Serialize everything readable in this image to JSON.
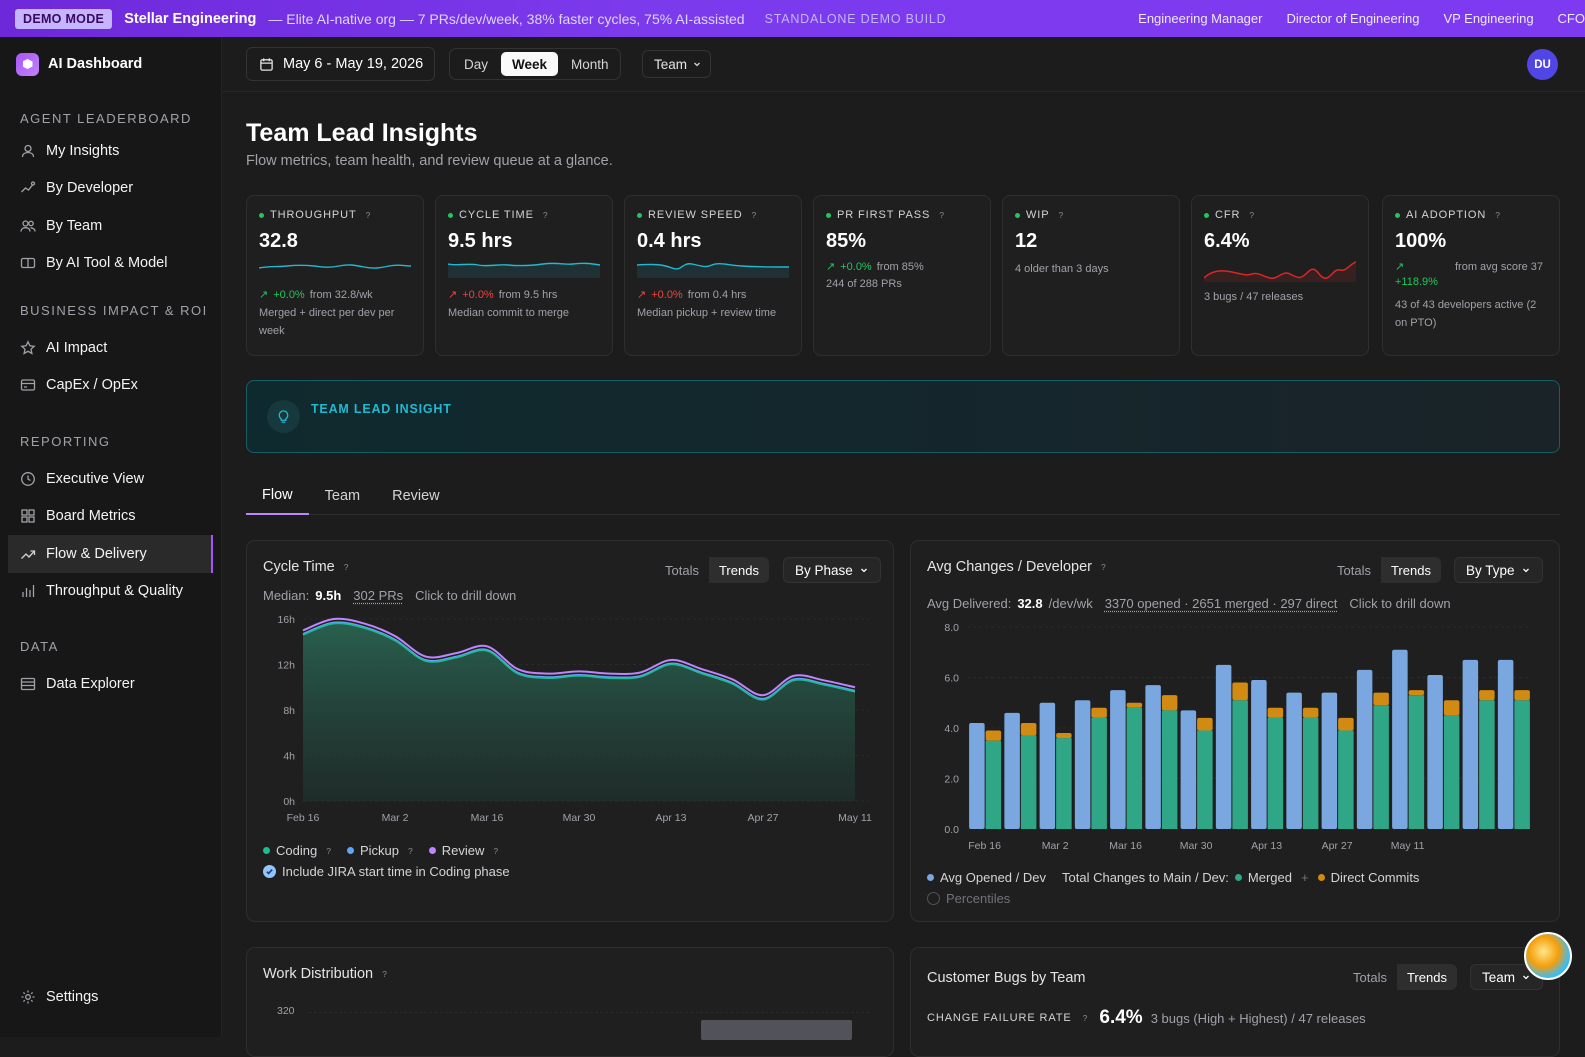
{
  "banner": {
    "badge": "DEMO MODE",
    "org": "Stellar Engineering",
    "tagline": "— Elite AI-native org — 7 PRs/dev/week, 38% faster cycles, 75% AI-assisted",
    "build": "STANDALONE DEMO BUILD",
    "roles": [
      "Engineering Manager",
      "Director of Engineering",
      "VP Engineering",
      "CFO"
    ]
  },
  "sidebar": {
    "brand": "AI Dashboard",
    "sections": [
      {
        "title": "AGENT LEADERBOARD",
        "items": [
          {
            "label": "My Insights",
            "icon": "user-icon"
          },
          {
            "label": "By Developer",
            "icon": "trend-user-icon"
          },
          {
            "label": "By Team",
            "icon": "users-icon"
          },
          {
            "label": "By AI Tool & Model",
            "icon": "toggle-icon"
          }
        ]
      },
      {
        "title": "BUSINESS IMPACT & ROI",
        "items": [
          {
            "label": "AI Impact",
            "icon": "star-icon"
          },
          {
            "label": "CapEx / OpEx",
            "icon": "ledger-icon"
          }
        ]
      },
      {
        "title": "REPORTING",
        "items": [
          {
            "label": "Executive View",
            "icon": "clock-icon"
          },
          {
            "label": "Board Metrics",
            "icon": "grid-icon"
          },
          {
            "label": "Flow & Delivery",
            "icon": "trend-icon",
            "active": true
          },
          {
            "label": "Throughput & Quality",
            "icon": "bar-icon"
          }
        ]
      },
      {
        "title": "DATA",
        "items": [
          {
            "label": "Data Explorer",
            "icon": "table-icon"
          }
        ]
      }
    ],
    "settings": "Settings"
  },
  "topbar": {
    "date_range": "May 6 - May 19, 2026",
    "granularity": [
      "Day",
      "Week",
      "Month"
    ],
    "granularity_selected": "Week",
    "scope": "Team",
    "avatar": "DU"
  },
  "page": {
    "title": "Team Lead Insights",
    "subtitle": "Flow metrics, team health, and review queue at a glance."
  },
  "kpis": [
    {
      "label": "THROUGHPUT",
      "value": "32.8",
      "delta": "+0.0%",
      "delta_from": "from 32.8/wk",
      "desc": "Merged + direct per dev per week",
      "spark_color": "#22b8cf"
    },
    {
      "label": "CYCLE TIME",
      "value": "9.5 hrs",
      "delta": "+0.0%",
      "delta_from": "from 9.5 hrs",
      "desc": "Median commit to merge",
      "spark_color": "#22b8cf"
    },
    {
      "label": "REVIEW SPEED",
      "value": "0.4 hrs",
      "delta": "+0.0%",
      "delta_from": "from 0.4 hrs",
      "desc": "Median pickup + review time",
      "spark_color": "#22b8cf"
    },
    {
      "label": "PR FIRST PASS",
      "value": "85%",
      "delta": "+0.0%",
      "delta_from": "from 85%",
      "desc": "244 of 288 PRs"
    },
    {
      "label": "WIP",
      "value": "12",
      "desc": "4 older than 3 days"
    },
    {
      "label": "CFR",
      "value": "6.4%",
      "desc": "3 bugs / 47 releases",
      "spark_color": "#dc2626"
    },
    {
      "label": "AI ADOPTION",
      "value": "100%",
      "delta": "+118.9%",
      "delta_from": "from avg score 37",
      "desc": "43 of 43 developers active (2 on PTO)"
    }
  ],
  "insight": {
    "title": "TEAM LEAD INSIGHT"
  },
  "tabs": [
    "Flow",
    "Team",
    "Review"
  ],
  "tabs_selected": "Flow",
  "cycle_card": {
    "title": "Cycle Time",
    "toggle": [
      "Totals",
      "Trends"
    ],
    "toggle_selected": "Trends",
    "dropdown": "By Phase",
    "median_label": "Median:",
    "median_value": "9.5h",
    "prs": "302 PRs",
    "drill": "Click to drill down",
    "legend": [
      {
        "name": "Coding",
        "color": "#22b893"
      },
      {
        "name": "Pickup",
        "color": "#60a5fa"
      },
      {
        "name": "Review",
        "color": "#c084fc"
      }
    ],
    "checkbox_label": "Include JIRA start time in Coding phase",
    "checkbox_checked": true
  },
  "avg_card": {
    "title": "Avg Changes / Developer",
    "toggle": [
      "Totals",
      "Trends"
    ],
    "toggle_selected": "Trends",
    "dropdown": "By Type",
    "delivered_label": "Avg Delivered:",
    "delivered_value": "32.8",
    "delivered_unit": "/dev/wk",
    "counts": "3370 opened · 2651 merged · 297 direct",
    "drill": "Click to drill down",
    "legend_opened": "Avg Opened / Dev",
    "legend_total": "Total Changes to Main / Dev:",
    "legend_merged": "Merged",
    "legend_plus": "+",
    "legend_direct": "Direct Commits",
    "percentiles": "Percentiles"
  },
  "work_card": {
    "title": "Work Distribution",
    "y_top": "320"
  },
  "bugs_card": {
    "title": "Customer Bugs by Team",
    "toggle": [
      "Totals",
      "Trends"
    ],
    "toggle_selected": "Trends",
    "dropdown": "Team",
    "cfr_label": "CHANGE FAILURE RATE",
    "cfr_value": "6.4%",
    "cfr_detail": "3 bugs (High + Highest) / 47 releases"
  },
  "colors": {
    "accent": "#a855f7",
    "coding": "#22b893",
    "pickup": "#60a5fa",
    "review": "#c084fc",
    "opened": "#7aa7e0",
    "merged": "#2fa787",
    "direct": "#d18a12"
  },
  "chart_data": [
    {
      "type": "area",
      "title": "Cycle Time",
      "x_labels": [
        "Feb 16",
        "Mar 2",
        "Mar 16",
        "Mar 30",
        "Apr 13",
        "Apr 27",
        "May 11"
      ],
      "y_ticks": [
        "0h",
        "4h",
        "8h",
        "12h",
        "16h"
      ],
      "ylim": [
        0,
        16
      ],
      "series": [
        {
          "name": "Coding",
          "values": [
            14.6,
            15.6,
            15.2,
            14.1,
            12.3,
            12.6,
            13.2,
            11.2,
            10.8,
            11.0,
            10.8,
            10.9,
            12.0,
            11.2,
            10.3,
            8.9,
            10.6,
            10.2,
            9.6
          ]
        },
        {
          "name": "Pickup",
          "values": [
            0.1,
            0.1,
            0.1,
            0.1,
            0.1,
            0.1,
            0.1,
            0.1,
            0.1,
            0.1,
            0.1,
            0.1,
            0.1,
            0.1,
            0.1,
            0.1,
            0.1,
            0.1,
            0.1
          ]
        },
        {
          "name": "Review",
          "values": [
            0.3,
            0.3,
            0.3,
            0.3,
            0.3,
            0.3,
            0.3,
            0.3,
            0.3,
            0.3,
            0.3,
            0.3,
            0.3,
            0.3,
            0.3,
            0.3,
            0.3,
            0.3,
            0.3
          ]
        }
      ]
    },
    {
      "type": "bar",
      "title": "Avg Changes / Developer",
      "x_labels": [
        "Feb 16",
        "Mar 2",
        "Mar 16",
        "Mar 30",
        "Apr 13",
        "Apr 27",
        "May 11"
      ],
      "y_ticks": [
        "0.0",
        "2.0",
        "4.0",
        "6.0",
        "8.0"
      ],
      "ylim": [
        0,
        8
      ],
      "series": [
        {
          "name": "Avg Opened / Dev",
          "values": [
            4.2,
            4.6,
            5.0,
            5.1,
            5.5,
            5.7,
            4.7,
            6.5,
            5.9,
            5.4,
            5.4,
            6.3,
            7.1,
            6.1,
            6.7,
            6.7
          ]
        },
        {
          "name": "Merged",
          "values": [
            3.5,
            3.7,
            3.6,
            4.4,
            4.8,
            4.7,
            3.9,
            5.1,
            4.4,
            4.4,
            3.9,
            4.9,
            5.3,
            4.5,
            5.1,
            5.1
          ]
        },
        {
          "name": "Direct Commits",
          "values": [
            0.4,
            0.5,
            0.2,
            0.4,
            0.2,
            0.6,
            0.5,
            0.7,
            0.4,
            0.4,
            0.5,
            0.5,
            0.2,
            0.6,
            0.4,
            0.4
          ]
        }
      ]
    }
  ]
}
